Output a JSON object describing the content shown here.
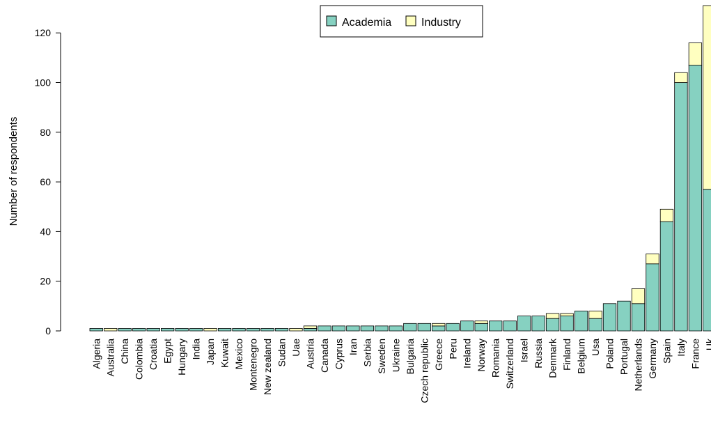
{
  "chart_data": {
    "type": "bar",
    "stacked": true,
    "ylabel": "Number of respondents",
    "xlabel": "",
    "ylim": [
      0,
      131
    ],
    "yticks": [
      0,
      20,
      40,
      60,
      80,
      100,
      120
    ],
    "legend_position": "top-center",
    "categories": [
      "Algeria",
      "Australia",
      "China",
      "Colombia",
      "Croatia",
      "Egypt",
      "Hungary",
      "India",
      "Japan",
      "Kuwait",
      "Mexico",
      "Montenegro",
      "New zealand",
      "Sudan",
      "Uae",
      "Austria",
      "Canada",
      "Cyprus",
      "Iran",
      "Serbia",
      "Sweden",
      "Ukraine",
      "Bulgaria",
      "Czech republic",
      "Greece",
      "Peru",
      "Ireland",
      "Norway",
      "Romania",
      "Switzerland",
      "Israel",
      "Russia",
      "Denmark",
      "Finland",
      "Belgium",
      "Usa",
      "Poland",
      "Portugal",
      "Netherlands",
      "Germany",
      "Spain",
      "Italy",
      "France",
      "Uk"
    ],
    "series": [
      {
        "name": "Academia",
        "color": "#86D1C1",
        "values": [
          1,
          0,
          1,
          1,
          1,
          1,
          1,
          1,
          0,
          1,
          1,
          1,
          1,
          1,
          0,
          1,
          2,
          2,
          2,
          2,
          2,
          2,
          3,
          3,
          2,
          3,
          4,
          3,
          4,
          4,
          6,
          6,
          5,
          6,
          8,
          5,
          11,
          12,
          11,
          27,
          44,
          100,
          107,
          57
        ]
      },
      {
        "name": "Industry",
        "color": "#FFFFC0",
        "values": [
          0,
          1,
          0,
          0,
          0,
          0,
          0,
          0,
          1,
          0,
          0,
          0,
          0,
          0,
          1,
          1,
          0,
          0,
          0,
          0,
          0,
          0,
          0,
          0,
          1,
          0,
          0,
          1,
          0,
          0,
          0,
          0,
          2,
          1,
          0,
          3,
          0,
          0,
          6,
          4,
          5,
          4,
          9,
          74
        ]
      }
    ]
  }
}
